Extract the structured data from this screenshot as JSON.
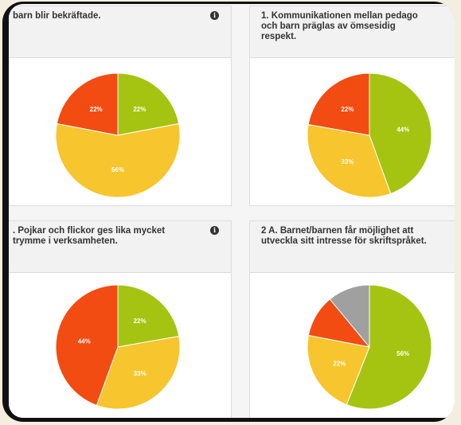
{
  "colors": {
    "green": "#a4c411",
    "yellow": "#f7c52d",
    "red": "#f24c12",
    "gray": "#a0a0a0"
  },
  "cards": [
    {
      "title": "barn blir bekräftade.",
      "info_icon": "i",
      "chart_data": {
        "type": "pie",
        "values": [
          22,
          56,
          22
        ],
        "labels": [
          "22%",
          "56%",
          "22%"
        ],
        "colors": [
          "green",
          "yellow",
          "red"
        ]
      }
    },
    {
      "title": "1. Kommunikationen mellan pedago\noch barn präglas av ömsesidig\nrespekt.",
      "chart_data": {
        "type": "pie",
        "values": [
          44,
          33,
          22
        ],
        "labels": [
          "44%",
          "33%",
          "22%"
        ],
        "colors": [
          "green",
          "yellow",
          "red"
        ]
      }
    },
    {
      "title": ". Pojkar och flickor ges lika mycket\ntrymme i verksamheten.",
      "info_icon": "i",
      "chart_data": {
        "type": "pie",
        "values": [
          22,
          33,
          44
        ],
        "labels": [
          "22%",
          "33%",
          "44%"
        ],
        "colors": [
          "green",
          "yellow",
          "red"
        ]
      }
    },
    {
      "title": "2 A. Barnet/barnen får möjlighet att\nutveckla sitt intresse för skriftspråket.",
      "chart_data": {
        "type": "pie",
        "values": [
          56,
          22,
          11,
          11
        ],
        "labels": [
          "56%",
          "22%",
          "",
          ""
        ],
        "colors": [
          "green",
          "yellow",
          "red",
          "gray"
        ]
      }
    }
  ]
}
